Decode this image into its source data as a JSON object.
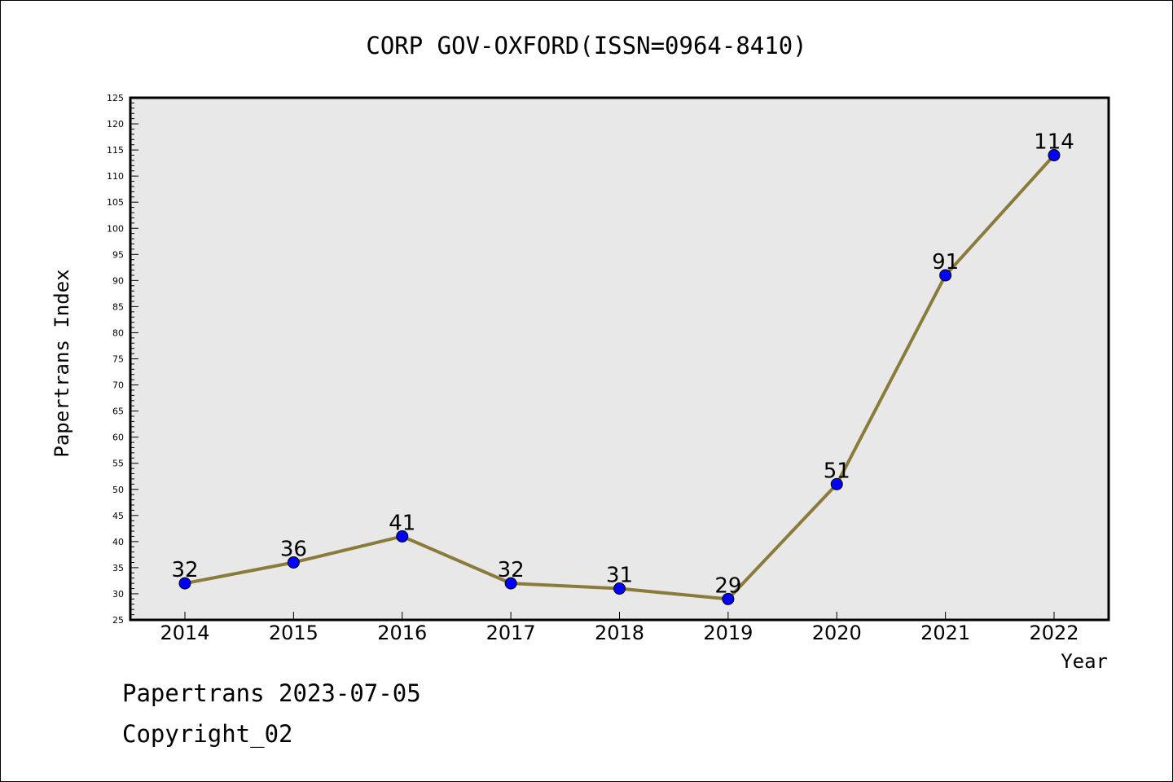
{
  "chart_data": {
    "type": "line",
    "title": "CORP GOV-OXFORD(ISSN=0964-8410)",
    "xlabel": "Year",
    "ylabel": "Papertrans Index",
    "categories": [
      "2014",
      "2015",
      "2016",
      "2017",
      "2018",
      "2019",
      "2020",
      "2021",
      "2022"
    ],
    "values": [
      32,
      36,
      41,
      32,
      31,
      29,
      51,
      91,
      114
    ],
    "ylim": [
      25,
      125
    ],
    "ytick_step": 5,
    "grid": false,
    "legend": "none",
    "colors": {
      "line": "#8B7B3A",
      "marker": "#0000FF",
      "plot_background": "#E8E8E8"
    }
  },
  "footer": {
    "line1": "Papertrans 2023-07-05",
    "line2": "Copyright_02"
  }
}
